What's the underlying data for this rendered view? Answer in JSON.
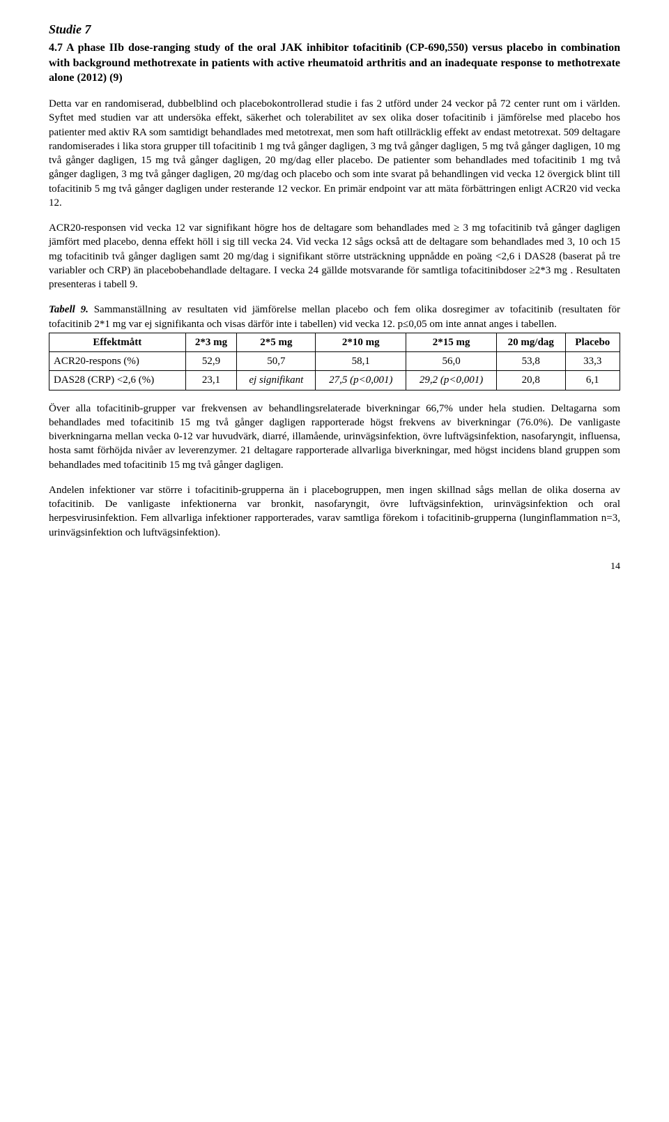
{
  "section_title": "Studie 7",
  "study_heading": "4.7 A phase IIb dose-ranging study of the oral JAK inhibitor tofacitinib (CP-690,550) versus placebo in combination with background methotrexate in patients with active rheumatoid arthritis and an inadequate response to methotrexate alone (2012) (9)",
  "para1": "Detta var en randomiserad, dubbelblind och placebokontrollerad studie i fas 2 utförd under 24 veckor på 72 center runt om i världen. Syftet med studien var att undersöka effekt, säkerhet och tolerabilitet av sex olika doser tofacitinib i jämförelse med placebo hos patienter med aktiv RA som samtidigt behandlades med metotrexat, men som haft otillräcklig effekt av endast metotrexat. 509 deltagare randomiserades i lika stora grupper till tofacitinib 1 mg två gånger dagligen, 3 mg två gånger dagligen, 5 mg två gånger dagligen, 10 mg två gånger dagligen, 15 mg två gånger dagligen, 20 mg/dag eller placebo. De patienter som behandlades med tofacitinib 1 mg två gånger dagligen, 3 mg två gånger dagligen, 20 mg/dag och placebo och som inte svarat på behandlingen vid vecka 12 övergick blint till tofacitinib 5 mg två gånger dagligen under resterande 12 veckor. En primär endpoint var att mäta förbättringen enligt ACR20 vid vecka 12.",
  "para2": "ACR20-responsen vid vecka 12 var signifikant högre hos de deltagare som behandlades med ≥ 3 mg tofacitinib två gånger dagligen jämfört med placebo, denna effekt höll i sig till vecka 24. Vid vecka 12 sågs också att de deltagare som behandlades med 3, 10 och 15 mg tofacitinib två gånger dagligen samt 20 mg/dag i signifikant större utsträckning uppnådde en poäng <2,6 i DAS28 (baserat på tre variabler och CRP) än placebobehandlade deltagare. I vecka 24 gällde motsvarande för samtliga tofacitinibdoser ≥2*3 mg . Resultaten presenteras i tabell 9.",
  "table_caption_label": "Tabell 9.",
  "table_caption_text": " Sammanställning av resultaten vid jämförelse mellan placebo och fem olika dosregimer av tofacitinib (resultaten för tofacitinib 2*1 mg var ej signifikanta och visas därför inte i tabellen) vid vecka 12. p≤0,05 om inte annat anges i tabellen.",
  "table": {
    "headers": [
      "Effektmått",
      "2*3 mg",
      "2*5 mg",
      "2*10 mg",
      "2*15 mg",
      "20 mg/dag",
      "Placebo"
    ],
    "rows": [
      {
        "label": "ACR20-respons (%)",
        "cells": [
          "52,9",
          "50,7",
          "58,1",
          "56,0",
          "53,8",
          "33,3"
        ]
      },
      {
        "label": "DAS28 (CRP) <2,6 (%)",
        "cells": [
          "23,1",
          "ej signifikant",
          "27,5 (p<0,001)",
          "29,2 (p<0,001)",
          "20,8",
          "6,1"
        ]
      }
    ]
  },
  "para3": "Över alla tofacitinib-grupper var frekvensen av behandlingsrelaterade biverkningar 66,7% under hela studien. Deltagarna som behandlades med tofacitinib 15 mg två gånger dagligen rapporterade högst frekvens av biverkningar (76.0%). De vanligaste biverkningarna mellan vecka 0-12 var huvudvärk, diarré, illamående, urinvägsinfektion, övre luftvägsinfektion, nasofaryngit, influensa, hosta samt förhöjda nivåer av leverenzymer. 21 deltagare rapporterade allvarliga biverkningar, med högst incidens bland gruppen som behandlades med tofacitinib 15 mg två gånger dagligen.",
  "para4": "Andelen infektioner var större i tofacitinib-grupperna än i placebogruppen, men ingen skillnad sågs mellan de olika doserna av tofacitinib. De vanligaste infektionerna var bronkit, nasofaryngit, övre luftvägsinfektion, urinvägsinfektion och oral herpesvirusinfektion. Fem allvarliga infektioner rapporterades, varav samtliga förekom i tofacitinib-grupperna (lunginflammation n=3, urinvägsinfektion och luftvägsinfektion).",
  "page_number": "14"
}
